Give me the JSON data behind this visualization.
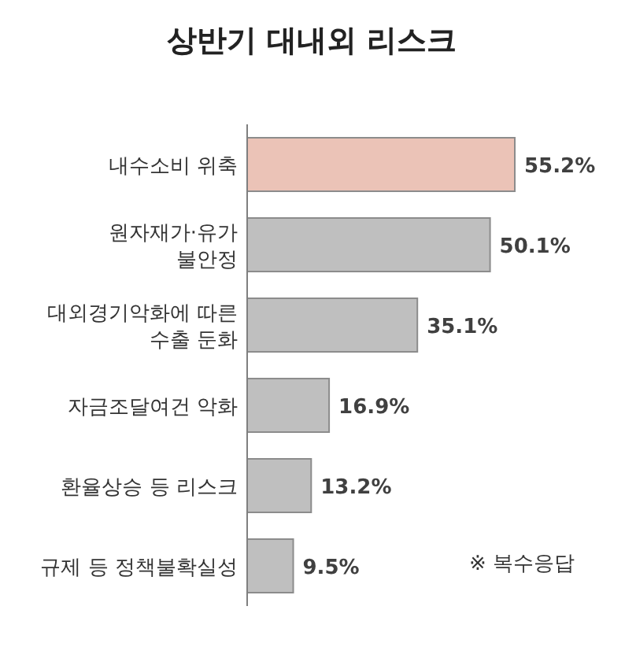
{
  "chart_data": {
    "type": "bar",
    "orientation": "horizontal",
    "title": "상반기 대내외 리스크",
    "categories": [
      "내수소비 위축",
      "원자재가·유가\n불안정",
      "대외경기악화에 따른\n수출 둔화",
      "자금조달여건 악화",
      "환율상승 등 리스크",
      "규제 등 정책불확실성"
    ],
    "values": [
      55.2,
      50.1,
      35.1,
      16.9,
      13.2,
      9.5
    ],
    "colors": [
      "#ebc3b7",
      "#bfbfbf",
      "#bfbfbf",
      "#bfbfbf",
      "#bfbfbf",
      "#bfbfbf"
    ],
    "value_labels": [
      "55.2%",
      "50.1%",
      "35.1%",
      "16.9%",
      "13.2%",
      "9.5%"
    ],
    "annotations": [
      "※ 복수응답"
    ]
  }
}
